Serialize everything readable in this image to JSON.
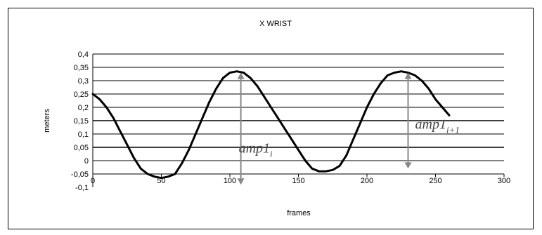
{
  "chart_data": {
    "type": "line",
    "title": "X WRIST",
    "xlabel": "frames",
    "ylabel": "meters",
    "xlim": [
      0,
      300
    ],
    "ylim": [
      -0.1,
      0.4
    ],
    "x_ticks": [
      "0",
      "50",
      "100",
      "150",
      "200",
      "250",
      "300"
    ],
    "y_ticks": [
      "-0,1",
      "-0,05",
      "0",
      "0,05",
      "0,1",
      "0,15",
      "0,2",
      "0,25",
      "0,3",
      "0,35",
      "0,4"
    ],
    "grid": "horizontal",
    "line_color": "#000000",
    "series": [
      {
        "x": [
          0,
          5,
          10,
          15,
          20,
          25,
          30,
          35,
          40,
          45,
          50,
          55,
          60,
          65,
          70,
          75,
          80,
          85,
          90,
          95,
          100,
          105,
          110,
          115,
          120,
          125,
          130,
          135,
          140,
          145,
          150,
          155,
          160,
          165,
          170,
          175,
          180,
          185,
          190,
          195,
          200,
          205,
          210,
          215,
          220,
          225,
          230,
          235,
          240,
          245,
          250,
          255,
          260
        ],
        "y": [
          0.25,
          0.23,
          0.2,
          0.16,
          0.11,
          0.06,
          0.01,
          -0.03,
          -0.05,
          -0.06,
          -0.065,
          -0.06,
          -0.05,
          -0.01,
          0.04,
          0.1,
          0.16,
          0.22,
          0.27,
          0.31,
          0.33,
          0.335,
          0.33,
          0.31,
          0.28,
          0.24,
          0.2,
          0.16,
          0.12,
          0.08,
          0.04,
          0.0,
          -0.03,
          -0.04,
          -0.04,
          -0.035,
          -0.02,
          0.02,
          0.08,
          0.14,
          0.2,
          0.25,
          0.29,
          0.32,
          0.33,
          0.335,
          0.33,
          0.32,
          0.3,
          0.27,
          0.23,
          0.2,
          0.17
        ]
      }
    ],
    "annotations": [
      {
        "base": "amp1",
        "sub": "i",
        "x": 108,
        "y_from": 0.33,
        "y_to": -0.09,
        "arrow_color": "#888888"
      },
      {
        "base": "amp1",
        "sub": "i+1",
        "x": 230,
        "y_from": 0.33,
        "y_to": -0.03,
        "arrow_color": "#888888"
      }
    ]
  }
}
